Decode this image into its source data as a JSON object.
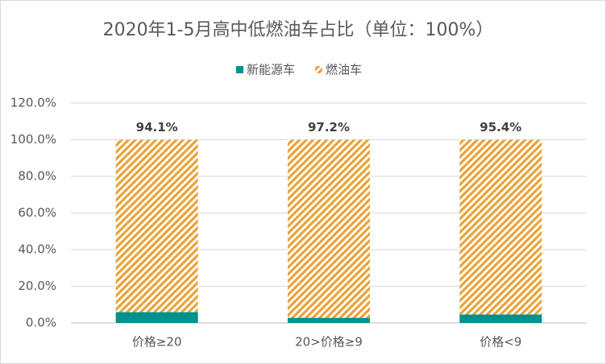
{
  "chart_data": {
    "type": "stacked_bar",
    "title": "2020年1-5月高中低燃油车占比（单位：100%）",
    "categories": [
      "价格≥20",
      "20>价格≥9",
      "价格<9"
    ],
    "series": [
      {
        "name": "新能源车",
        "color": "#00918e",
        "values": [
          5.9,
          2.8,
          4.6
        ]
      },
      {
        "name": "燃油车",
        "color": "#e8a33a",
        "hatch": true,
        "values": [
          94.1,
          97.2,
          95.4
        ],
        "value_labels": [
          "94.1%",
          "97.2%",
          "95.4%"
        ]
      }
    ],
    "ylim": [
      0,
      120
    ],
    "yticks": [
      {
        "value": 0,
        "label": "0.0%"
      },
      {
        "value": 20,
        "label": "20.0%"
      },
      {
        "value": 40,
        "label": "40.0%"
      },
      {
        "value": 60,
        "label": "60.0%"
      },
      {
        "value": 80,
        "label": "80.0%"
      },
      {
        "value": 100,
        "label": "100.0%"
      },
      {
        "value": 120,
        "label": "120.0%"
      }
    ],
    "grid": true,
    "legend": "top"
  }
}
